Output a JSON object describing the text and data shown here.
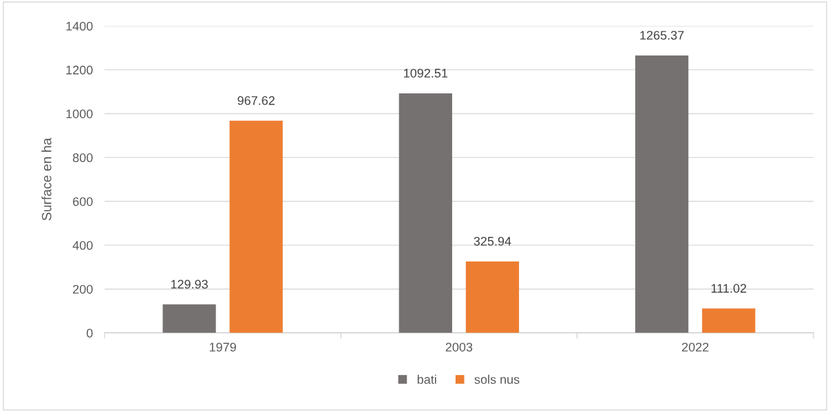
{
  "chart_data": {
    "type": "bar",
    "ylabel": "Surface en ha",
    "categories": [
      "1979",
      "2003",
      "2022"
    ],
    "series": [
      {
        "name": "bati",
        "color": "#767171",
        "values": [
          129.93,
          1092.51,
          1265.37
        ]
      },
      {
        "name": "sols nus",
        "color": "#ed7d31",
        "values": [
          967.62,
          325.94,
          111.02
        ]
      }
    ],
    "ylim": [
      0,
      1400
    ],
    "yticks": [
      0,
      200,
      400,
      600,
      800,
      1000,
      1200,
      1400
    ],
    "grid": "y",
    "legend": "bottom",
    "data_labels": true
  }
}
